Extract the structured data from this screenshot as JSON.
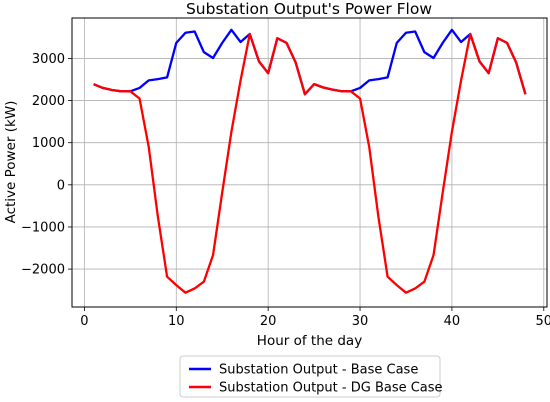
{
  "chart_data": {
    "type": "line",
    "title": "Substation Output's Power Flow",
    "xlabel": "Hour of the day",
    "ylabel": "Active Power (kW)",
    "xlim": [
      -1.35,
      50.35
    ],
    "ylim": [
      -2900,
      3960
    ],
    "xticks": [
      0,
      10,
      20,
      30,
      40,
      50
    ],
    "yticks": [
      -2000,
      -1000,
      0,
      1000,
      2000,
      3000
    ],
    "xtick_labels": [
      "0",
      "10",
      "20",
      "30",
      "40",
      "50"
    ],
    "ytick_labels": [
      "−2000",
      "−1000",
      "0",
      "1000",
      "2000",
      "3000"
    ],
    "grid": true,
    "legend_position": "below-center",
    "x": [
      1,
      2,
      3,
      4,
      5,
      6,
      7,
      8,
      9,
      10,
      11,
      12,
      13,
      14,
      15,
      16,
      17,
      18,
      19,
      20,
      21,
      22,
      23,
      24,
      25,
      26,
      27,
      28,
      29,
      30,
      31,
      32,
      33,
      34,
      35,
      36,
      37,
      38,
      39,
      40,
      41,
      42,
      43,
      44,
      45,
      46,
      47,
      48
    ],
    "series": [
      {
        "name": "Substation Output - Base Case",
        "color": "#0000ff",
        "values": [
          2390,
          2300,
          2250,
          2220,
          2220,
          2300,
          2480,
          2510,
          2550,
          3370,
          3610,
          3640,
          3150,
          3010,
          3370,
          3680,
          3390,
          3580,
          2930,
          2650,
          3480,
          3370,
          2900,
          2150,
          2390,
          2310,
          2260,
          2220,
          2220,
          2300,
          2480,
          2510,
          2550,
          3370,
          3610,
          3640,
          3150,
          3010,
          3370,
          3680,
          3390,
          3580,
          2930,
          2650,
          3480,
          3370,
          2900,
          2150
        ]
      },
      {
        "name": "Substation Output - DG Base Case",
        "color": "#ff0000",
        "values": [
          2390,
          2300,
          2250,
          2220,
          2220,
          2050,
          900,
          -760,
          -2180,
          -2380,
          -2560,
          -2460,
          -2300,
          -1670,
          -180,
          1260,
          2480,
          3580,
          2930,
          2650,
          3480,
          3370,
          2900,
          2150,
          2390,
          2310,
          2260,
          2220,
          2220,
          2050,
          900,
          -760,
          -2180,
          -2380,
          -2560,
          -2460,
          -2300,
          -1670,
          -180,
          1260,
          2480,
          3580,
          2930,
          2650,
          3480,
          3370,
          2900,
          2150
        ]
      }
    ]
  }
}
